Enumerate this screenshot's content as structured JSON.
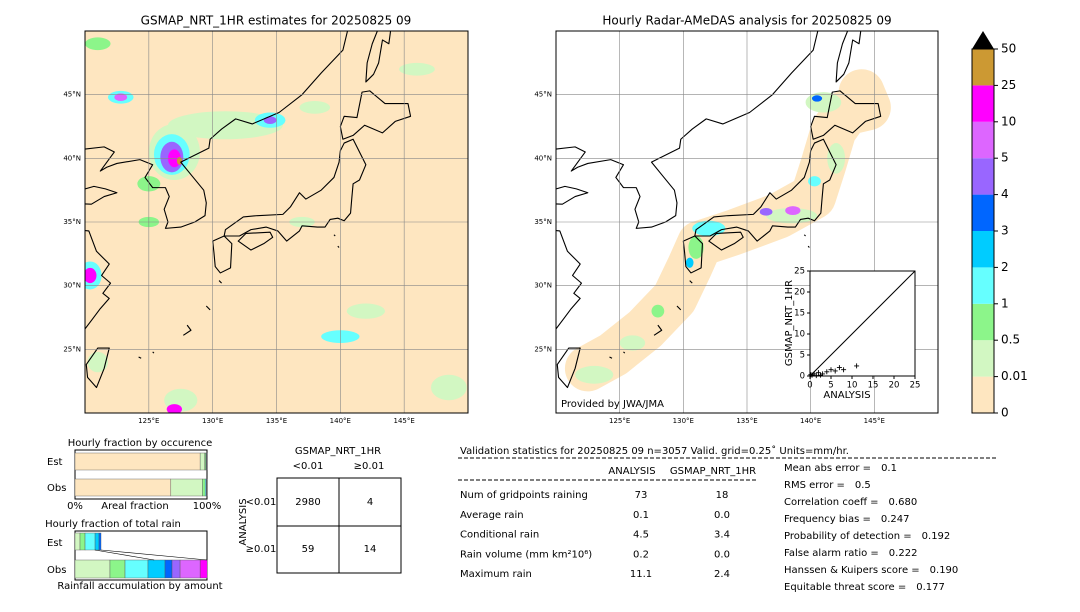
{
  "maps": [
    {
      "title": "GSMAP_NRT_1HR estimates for 20250825 09"
    },
    {
      "title": "Hourly Radar-AMeDAS analysis for 20250825 09",
      "credit": "Provided by JWA/JMA"
    }
  ],
  "lon_lim": [
    120,
    150
  ],
  "lat_lim": [
    20,
    50
  ],
  "lon_ticks": [
    {
      "value": 125,
      "label": "125°E"
    },
    {
      "value": 130,
      "label": "130°E"
    },
    {
      "value": 135,
      "label": "135°E"
    },
    {
      "value": 140,
      "label": "140°E"
    },
    {
      "value": 145,
      "label": "145°E"
    }
  ],
  "lat_ticks": [
    {
      "value": 25,
      "label": "25°N"
    },
    {
      "value": 30,
      "label": "30°N"
    },
    {
      "value": 35,
      "label": "35°N"
    },
    {
      "value": 40,
      "label": "40°N"
    },
    {
      "value": 45,
      "label": "45°N"
    }
  ],
  "colorbar": {
    "levels": [
      0,
      0.01,
      0.5,
      1,
      2,
      3,
      4,
      5,
      10,
      25,
      50
    ],
    "colors": [
      "#fee6c0",
      "#d2f7c2",
      "#8cf58a",
      "#66ffff",
      "#00ccff",
      "#0066ff",
      "#9966ff",
      "#dd66ff",
      "#ff00ff",
      "#cc9933"
    ]
  },
  "scatter": {
    "xlabel": "ANALYSIS",
    "ylabel": "GSMAP_NRT_1HR",
    "xlim": [
      0,
      25
    ],
    "ylim": [
      0,
      25
    ],
    "xticks": [
      0,
      5,
      10,
      15,
      20,
      25
    ],
    "yticks": [
      0,
      5,
      10,
      15,
      20,
      25
    ],
    "x": [
      0,
      0.2,
      0.5,
      1,
      1.5,
      2,
      2.5,
      3,
      4,
      5,
      6,
      7,
      8,
      11.1
    ],
    "y": [
      0,
      0.3,
      0.2,
      0.5,
      0.1,
      0.8,
      0.2,
      0.5,
      1,
      1.5,
      1.2,
      2,
      1.5,
      2.4
    ]
  },
  "occurrence": {
    "title": "Hourly fraction by occurence",
    "rows": [
      "Est",
      "Obs"
    ],
    "xlabel": "Areal fraction",
    "xticks": [
      {
        "value": 0,
        "label": "0%"
      },
      {
        "value": 100,
        "label": "100%"
      }
    ],
    "est": [
      94.8,
      3.5,
      0.8,
      0.4,
      0.2,
      0.1,
      0.1,
      0.1,
      0,
      0
    ],
    "obs": [
      72.6,
      24,
      2,
      0.8,
      0.3,
      0.1,
      0.1,
      0.1,
      0,
      0
    ]
  },
  "total_rain": {
    "title": "Hourly fraction of total rain",
    "footer": "Rainfall accumulation by amount",
    "rows": [
      "Est",
      "Obs"
    ],
    "est": [
      0,
      3.8,
      3.8,
      7.6,
      3,
      1.5,
      0,
      0,
      0,
      0
    ],
    "obs": [
      0,
      26.5,
      11.4,
      17.4,
      12.9,
      5.3,
      6.1,
      15.2,
      5.3,
      0
    ]
  },
  "contingency": {
    "title": "GSMAP_NRT_1HR",
    "col_labels": [
      "<0.01",
      "≥0.01"
    ],
    "row_title": "ANALYSIS",
    "row_labels": [
      "<0.01",
      "≥0.01"
    ],
    "cells": [
      [
        2980,
        4
      ],
      [
        59,
        14
      ]
    ]
  },
  "stats": {
    "header": "Validation statistics for 20250825 09  n=3057 Valid. grid=0.25˚ Units=mm/hr.",
    "columns": [
      "ANALYSIS",
      "GSMAP_NRT_1HR"
    ],
    "rows": [
      {
        "label": "Num of gridpoints raining",
        "analysis": "73",
        "gsmap": "18"
      },
      {
        "label": "Average rain",
        "analysis": "0.1",
        "gsmap": "0.0"
      },
      {
        "label": "Conditional rain",
        "analysis": "4.5",
        "gsmap": "3.4"
      },
      {
        "label": "Rain volume (mm km²10⁶)",
        "analysis": "0.2",
        "gsmap": "0.0"
      },
      {
        "label": "Maximum rain",
        "analysis": "11.1",
        "gsmap": "2.4"
      }
    ],
    "scores": [
      {
        "label": "Mean abs error =",
        "value": "0.1"
      },
      {
        "label": "RMS error =",
        "value": "0.5"
      },
      {
        "label": "Correlation coeff =",
        "value": "0.680"
      },
      {
        "label": "Frequency bias =",
        "value": "0.247"
      },
      {
        "label": "Probability of detection =",
        "value": "0.192"
      },
      {
        "label": "False alarm ratio =",
        "value": "0.222"
      },
      {
        "label": "Hanssen & Kuipers score =",
        "value": "0.190"
      },
      {
        "label": "Equitable threat score =",
        "value": "0.177"
      }
    ]
  }
}
